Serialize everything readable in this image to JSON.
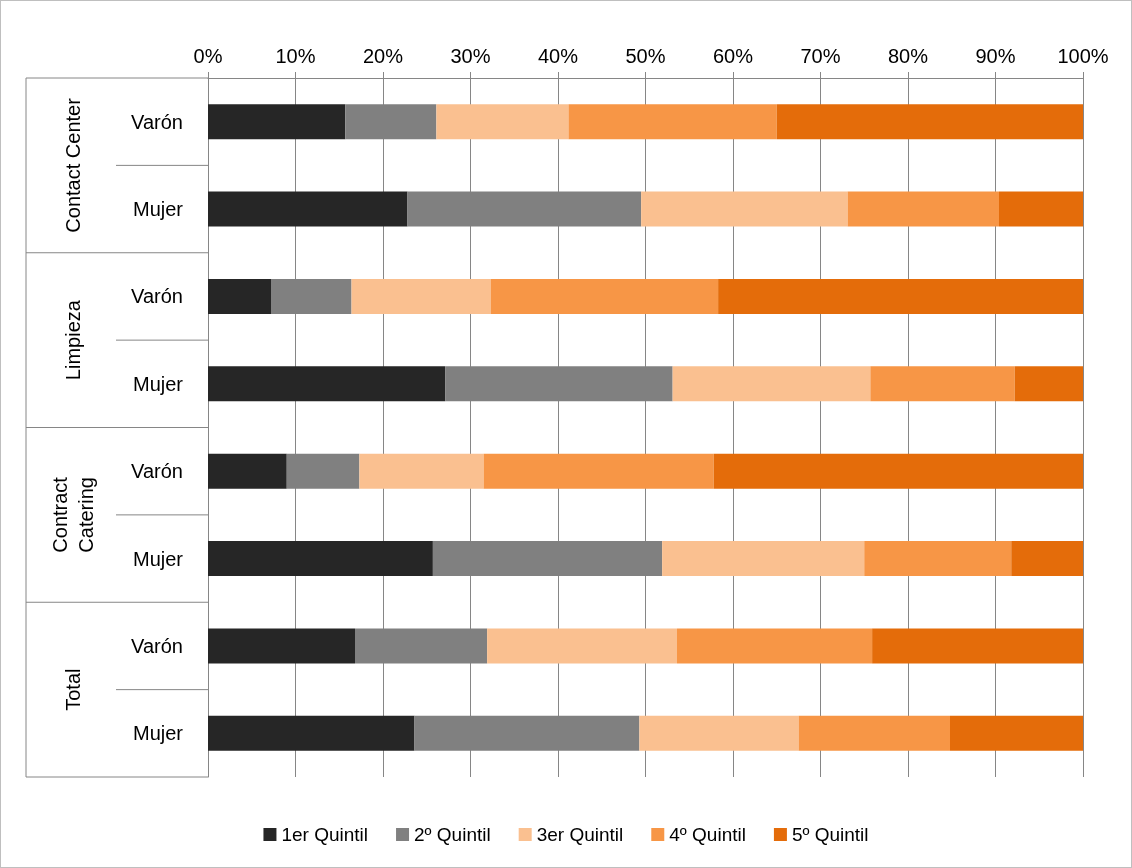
{
  "chart_data": {
    "type": "bar",
    "orientation": "horizontal",
    "stacked": true,
    "categories": [
      "Varón",
      "Mujer",
      "Varón",
      "Mujer",
      "Varón",
      "Mujer",
      "Varón",
      "Mujer"
    ],
    "annotations": [
      "Contact Center",
      "Limpieza",
      "Contract\nCatering",
      "Total"
    ],
    "series": [
      {
        "name": "1er Quintil",
        "color": "#262626",
        "values": [
          15.7,
          22.8,
          7.2,
          27.1,
          9.0,
          25.7,
          16.8,
          23.6
        ]
      },
      {
        "name": "2º Quintil",
        "color": "#808080",
        "values": [
          10.4,
          26.7,
          9.2,
          26.0,
          8.3,
          26.2,
          15.1,
          25.7
        ]
      },
      {
        "name": "3er Quintil",
        "color": "#fac090",
        "values": [
          15.1,
          23.6,
          15.9,
          22.6,
          14.2,
          23.1,
          21.7,
          18.2
        ]
      },
      {
        "name": "4º Quintil",
        "color": "#f79646",
        "values": [
          23.8,
          17.3,
          26.0,
          16.5,
          26.3,
          16.8,
          22.3,
          17.3
        ]
      },
      {
        "name": "5º Quintil",
        "color": "#e46c0a",
        "values": [
          35.0,
          9.6,
          41.7,
          7.8,
          42.2,
          8.2,
          24.1,
          15.2
        ]
      }
    ],
    "xlim": [
      0,
      100
    ],
    "xticks": [
      {
        "value": 0,
        "label": "0%"
      },
      {
        "value": 10,
        "label": "10%"
      },
      {
        "value": 20,
        "label": "20%"
      },
      {
        "value": 30,
        "label": "30%"
      },
      {
        "value": 40,
        "label": "40%"
      },
      {
        "value": 50,
        "label": "50%"
      },
      {
        "value": 60,
        "label": "60%"
      },
      {
        "value": 70,
        "label": "70%"
      },
      {
        "value": 80,
        "label": "80%"
      },
      {
        "value": 90,
        "label": "90%"
      },
      {
        "value": 100,
        "label": "100%"
      }
    ],
    "grid": "x",
    "legend": "bottom"
  }
}
